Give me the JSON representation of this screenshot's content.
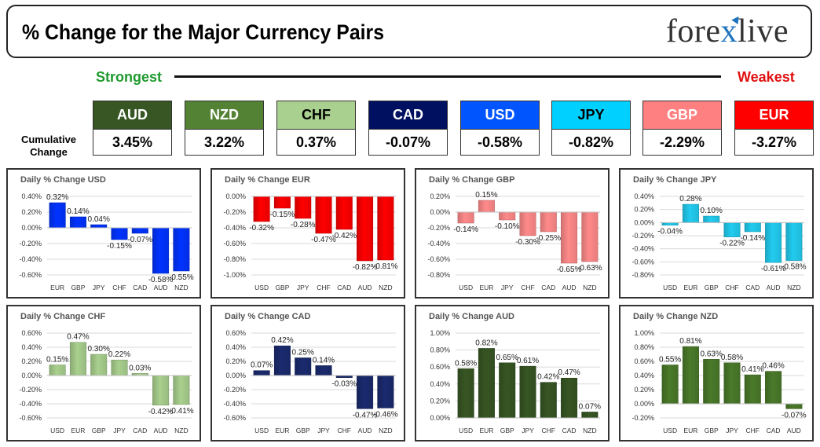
{
  "header": {
    "title": "% Change for the Major Currency Pairs",
    "logo_pre": "fore",
    "logo_x": "x",
    "logo_post": "live"
  },
  "ranking": {
    "strongest_label": "Strongest",
    "weakest_label": "Weakest",
    "cumulative_label_line1": "Cumulative",
    "cumulative_label_line2": "Change",
    "currencies": [
      {
        "code": "AUD",
        "value": "3.45%",
        "color": "#375623",
        "text_color": "#ffffff"
      },
      {
        "code": "NZD",
        "value": "3.22%",
        "color": "#548235",
        "text_color": "#ffffff"
      },
      {
        "code": "CHF",
        "value": "0.37%",
        "color": "#a9d08e",
        "text_color": "#000000"
      },
      {
        "code": "CAD",
        "value": "-0.07%",
        "color": "#001060",
        "text_color": "#ffffff"
      },
      {
        "code": "USD",
        "value": "-0.58%",
        "color": "#0055ff",
        "text_color": "#ffffff"
      },
      {
        "code": "JPY",
        "value": "-0.82%",
        "color": "#00d0ff",
        "text_color": "#000000"
      },
      {
        "code": "GBP",
        "value": "-2.29%",
        "color": "#ff8080",
        "text_color": "#ffffff"
      },
      {
        "code": "EUR",
        "value": "-3.27%",
        "color": "#ff0000",
        "text_color": "#ffffff"
      }
    ]
  },
  "chart_data": [
    {
      "type": "bar",
      "title": "Daily % Change USD",
      "categories": [
        "EUR",
        "GBP",
        "JPY",
        "CHF",
        "CAD",
        "AUD",
        "NZD"
      ],
      "values": [
        0.32,
        0.14,
        0.04,
        -0.15,
        -0.07,
        -0.58,
        -0.55
      ],
      "labels": [
        "0.32%",
        "0.14%",
        "0.04%",
        "-0.15%",
        "-0.07%",
        "-0.58%",
        "-0.55%"
      ],
      "yticks": [
        "0.40%",
        "0.20%",
        "0.00%",
        "-0.20%",
        "-0.40%",
        "-0.60%"
      ],
      "ylim": [
        -0.6,
        0.4
      ],
      "color": "#0033ff"
    },
    {
      "type": "bar",
      "title": "Daily % Change EUR",
      "categories": [
        "USD",
        "GBP",
        "JPY",
        "CHF",
        "CAD",
        "AUD",
        "NZD"
      ],
      "values": [
        -0.32,
        -0.15,
        -0.28,
        -0.47,
        -0.42,
        -0.82,
        -0.81
      ],
      "labels": [
        "-0.32%",
        "-0.15%",
        "-0.28%",
        "-0.47%",
        "-0.42%",
        "-0.82%",
        "-0.81%"
      ],
      "yticks": [
        "0.00%",
        "-0.20%",
        "-0.40%",
        "-0.60%",
        "-0.80%",
        "-1.00%"
      ],
      "ylim": [
        -1.0,
        0.0
      ],
      "color": "#ff0000"
    },
    {
      "type": "bar",
      "title": "Daily % Change GBP",
      "categories": [
        "USD",
        "EUR",
        "JPY",
        "CHF",
        "CAD",
        "AUD",
        "NZD"
      ],
      "values": [
        -0.14,
        0.15,
        -0.1,
        -0.3,
        -0.25,
        -0.65,
        -0.63
      ],
      "labels": [
        "-0.14%",
        "0.15%",
        "-0.10%",
        "-0.30%",
        "-0.25%",
        "-0.65%",
        "-0.63%"
      ],
      "yticks": [
        "0.20%",
        "0.00%",
        "-0.20%",
        "-0.40%",
        "-0.60%",
        "-0.80%"
      ],
      "ylim": [
        -0.8,
        0.2
      ],
      "color": "#ff8a8a"
    },
    {
      "type": "bar",
      "title": "Daily % Change JPY",
      "categories": [
        "USD",
        "EUR",
        "GBP",
        "CHF",
        "CAD",
        "AUD",
        "NZD"
      ],
      "values": [
        -0.04,
        0.28,
        0.1,
        -0.22,
        -0.14,
        -0.61,
        -0.58
      ],
      "labels": [
        "-0.04%",
        "0.28%",
        "0.10%",
        "-0.22%",
        "-0.14%",
        "-0.61%",
        "-0.58%"
      ],
      "yticks": [
        "0.40%",
        "0.20%",
        "0.00%",
        "-0.20%",
        "-0.40%",
        "-0.60%",
        "-0.80%"
      ],
      "ylim": [
        -0.8,
        0.4
      ],
      "color": "#22ccf0"
    },
    {
      "type": "bar",
      "title": "Daily % Change CHF",
      "categories": [
        "USD",
        "EUR",
        "GBP",
        "JPY",
        "CAD",
        "AUD",
        "NZD"
      ],
      "values": [
        0.15,
        0.47,
        0.3,
        0.22,
        0.03,
        -0.42,
        -0.41
      ],
      "labels": [
        "0.15%",
        "0.47%",
        "0.30%",
        "0.22%",
        "0.03%",
        "-0.42%",
        "-0.41%"
      ],
      "yticks": [
        "0.60%",
        "0.40%",
        "0.20%",
        "0.00%",
        "-0.20%",
        "-0.40%",
        "-0.60%"
      ],
      "ylim": [
        -0.6,
        0.6
      ],
      "color": "#a9d08e"
    },
    {
      "type": "bar",
      "title": "Daily % Change CAD",
      "categories": [
        "USD",
        "EUR",
        "GBP",
        "JPY",
        "CHF",
        "AUD",
        "NZD"
      ],
      "values": [
        0.07,
        0.42,
        0.25,
        0.14,
        -0.03,
        -0.47,
        -0.46
      ],
      "labels": [
        "0.07%",
        "0.42%",
        "0.25%",
        "0.14%",
        "-0.03%",
        "-0.47%",
        "-0.46%"
      ],
      "yticks": [
        "0.60%",
        "0.40%",
        "0.20%",
        "0.00%",
        "-0.20%",
        "-0.40%",
        "-0.60%"
      ],
      "ylim": [
        -0.6,
        0.6
      ],
      "color": "#1a2a6e"
    },
    {
      "type": "bar",
      "title": "Daily % Change AUD",
      "categories": [
        "USD",
        "EUR",
        "GBP",
        "JPY",
        "CHF",
        "CAD",
        "NZD"
      ],
      "values": [
        0.58,
        0.82,
        0.65,
        0.61,
        0.42,
        0.47,
        0.07
      ],
      "labels": [
        "0.58%",
        "0.82%",
        "0.65%",
        "0.61%",
        "0.42%",
        "0.47%",
        "0.07%"
      ],
      "yticks": [
        "1.00%",
        "0.80%",
        "0.60%",
        "0.40%",
        "0.20%",
        "0.00%"
      ],
      "ylim": [
        0.0,
        1.0
      ],
      "color": "#375623"
    },
    {
      "type": "bar",
      "title": "Daily % Change NZD",
      "categories": [
        "USD",
        "EUR",
        "GBP",
        "JPY",
        "CHF",
        "CAD",
        "AUD"
      ],
      "values": [
        0.55,
        0.81,
        0.63,
        0.58,
        0.41,
        0.46,
        -0.07
      ],
      "labels": [
        "0.55%",
        "0.81%",
        "0.63%",
        "0.58%",
        "0.41%",
        "0.46%",
        "-0.07%"
      ],
      "yticks": [
        "1.00%",
        "0.80%",
        "0.60%",
        "0.40%",
        "0.20%",
        "0.00%",
        "-0.20%"
      ],
      "ylim": [
        -0.2,
        1.0
      ],
      "color": "#4a7a2a"
    }
  ]
}
